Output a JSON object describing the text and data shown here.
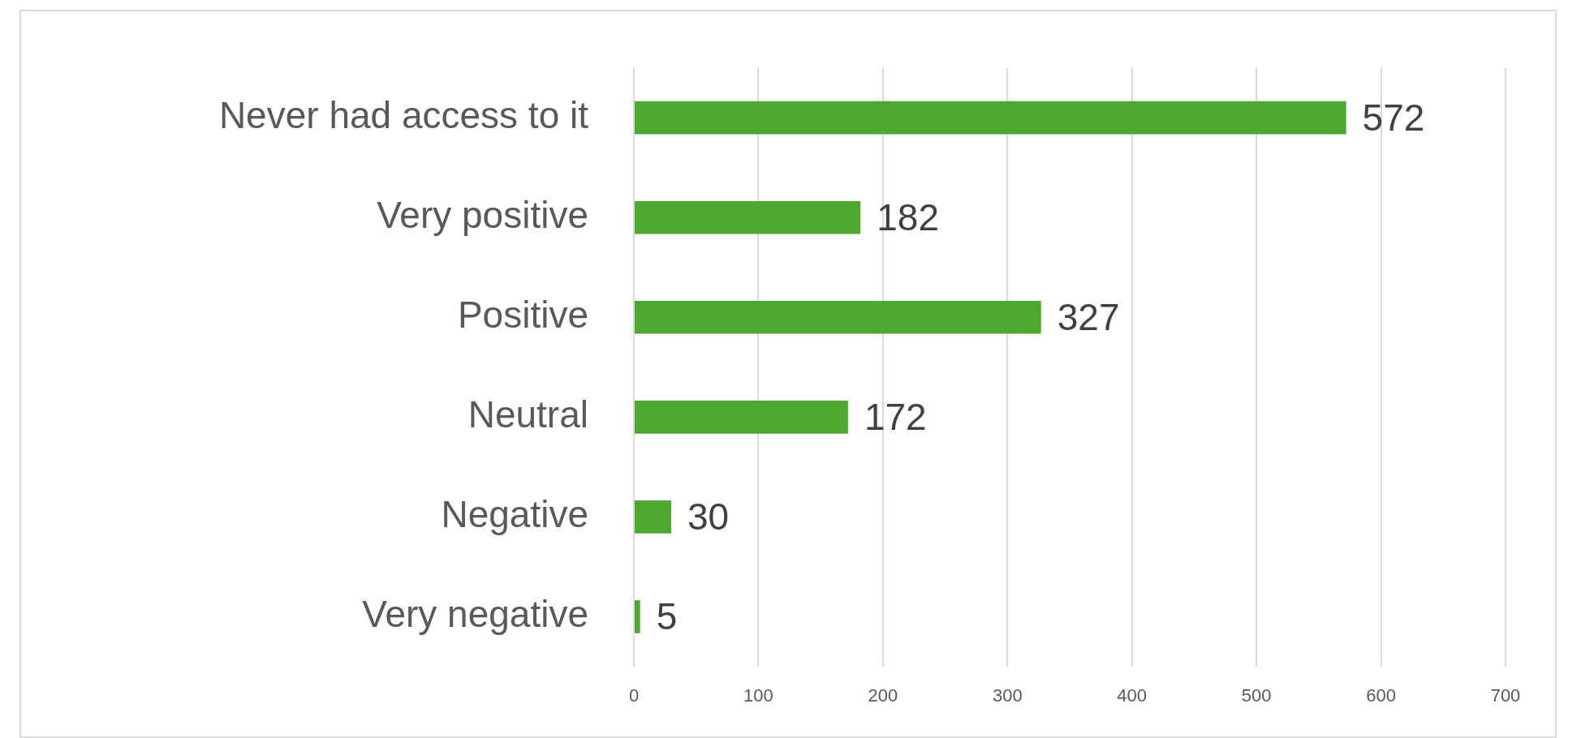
{
  "chart_data": {
    "type": "bar",
    "orientation": "horizontal",
    "categories": [
      "Never had access to it",
      "Very positive",
      "Positive",
      "Neutral",
      "Negative",
      "Very negative"
    ],
    "values": [
      572,
      182,
      327,
      172,
      30,
      5
    ],
    "color": "#4ea72e",
    "xlim": [
      0,
      700
    ],
    "xticks": [
      0,
      100,
      200,
      300,
      400,
      500,
      600,
      700
    ],
    "grid": "x",
    "data_labels": true
  }
}
